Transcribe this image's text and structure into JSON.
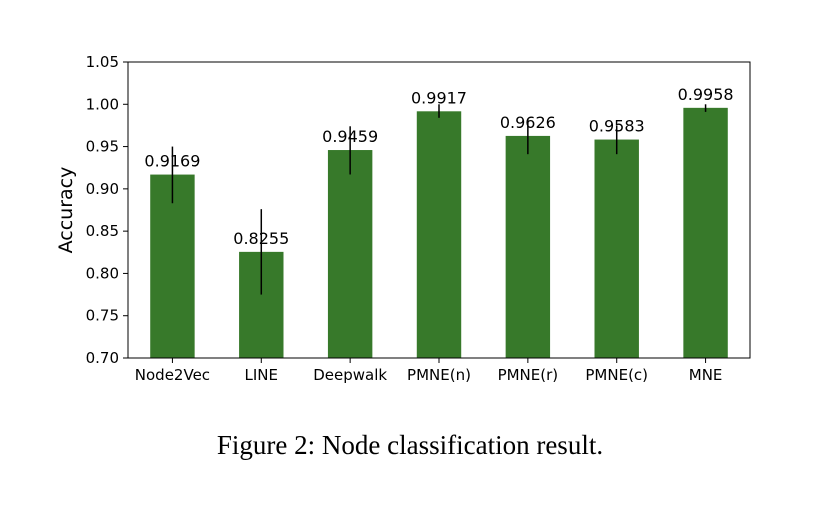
{
  "chart_data": {
    "type": "bar",
    "categories": [
      "Node2Vec",
      "LINE",
      "Deepwalk",
      "PMNE(n)",
      "PMNE(r)",
      "PMNE(c)",
      "MNE"
    ],
    "values": [
      0.9169,
      0.8255,
      0.9459,
      0.9917,
      0.9626,
      0.9583,
      0.9958
    ],
    "value_labels": [
      "0.9169",
      "0.8255",
      "0.9459",
      "0.9917",
      "0.9626",
      "0.9583",
      "0.9958"
    ],
    "error_low": [
      0.883,
      0.775,
      0.917,
      0.984,
      0.941,
      0.941,
      0.991
    ],
    "error_high": [
      0.95,
      0.876,
      0.974,
      1.0,
      0.983,
      0.975,
      1.0
    ],
    "ylabel": "Accuracy",
    "xlabel": "",
    "title": "",
    "ylim": [
      0.7,
      1.05
    ],
    "yticks": [
      "0.70",
      "0.75",
      "0.80",
      "0.85",
      "0.90",
      "0.95",
      "1.00",
      "1.05"
    ],
    "grid": false,
    "bar_color": "#37792a"
  },
  "caption": "Figure 2: Node classification result."
}
